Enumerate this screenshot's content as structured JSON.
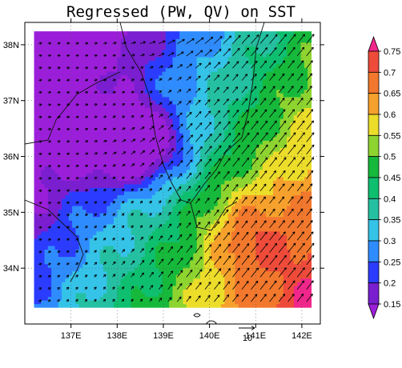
{
  "map": {
    "title": "Regressed (PW, QV) on SST",
    "lon_labels": [
      "137E",
      "138E",
      "139E",
      "140E",
      "141E",
      "142E"
    ],
    "lon_values": [
      137,
      138,
      139,
      140,
      141,
      142
    ],
    "lat_labels": [
      "38N",
      "37N",
      "36N",
      "35N",
      "34N"
    ],
    "lat_values": [
      38,
      37,
      36,
      35,
      34
    ],
    "lon_range": [
      136.0,
      142.4
    ],
    "lat_range": [
      33.0,
      38.4
    ],
    "data_box": {
      "lon": [
        136.2,
        142.2
      ],
      "lat": [
        33.3,
        38.2
      ]
    },
    "grid": "dotted"
  },
  "colorbar": {
    "levels": [
      0.15,
      0.2,
      0.25,
      0.3,
      0.35,
      0.4,
      0.45,
      0.5,
      0.55,
      0.6,
      0.65,
      0.7,
      0.75
    ],
    "labels": [
      "0.15",
      "0.2",
      "0.25",
      "0.3",
      "0.35",
      "0.4",
      "0.45",
      "0.5",
      "0.55",
      "0.6",
      "0.65",
      "0.7",
      "0.75"
    ],
    "colors": [
      "#9b1fd9",
      "#7a1fd0",
      "#2b3cff",
      "#2f8cff",
      "#35c3e8",
      "#25c0a2",
      "#0fbf70",
      "#16b93b",
      "#8ed430",
      "#ecdd2a",
      "#f6a12d",
      "#f2782d",
      "#ee4b3a",
      "#f0268a"
    ],
    "extend": "both"
  },
  "reference_vector": {
    "label": "10",
    "magnitude": 10
  }
}
